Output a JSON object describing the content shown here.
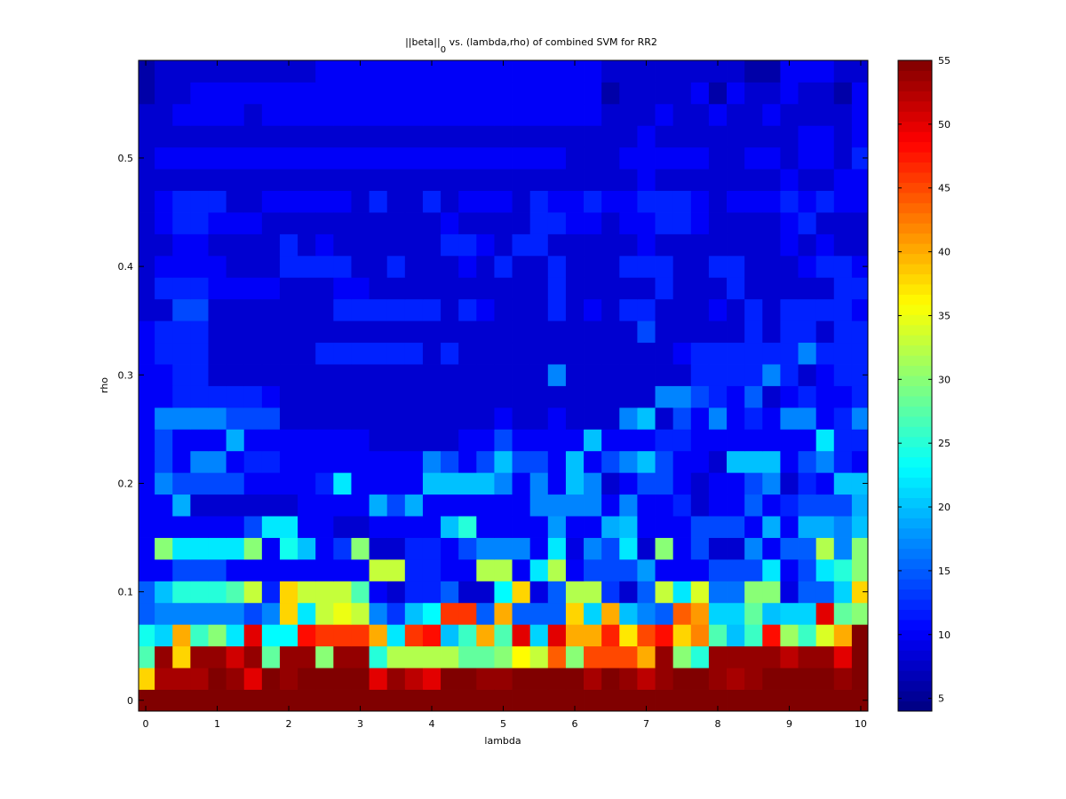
{
  "chart_data": {
    "type": "heatmap",
    "title_main": "||beta||",
    "title_sub": "0",
    "title_rest": " vs. (lambda,rho) of combined SVM for RR2",
    "xlabel": "lambda",
    "ylabel": "rho",
    "xlim": [
      -0.1,
      10.1
    ],
    "ylim": [
      -0.01,
      0.59
    ],
    "xticks": [
      "0",
      "1",
      "2",
      "3",
      "4",
      "5",
      "6",
      "7",
      "8",
      "9",
      "10"
    ],
    "yticks": [
      "0",
      "0.1",
      "0.2",
      "0.3",
      "0.4",
      "0.5"
    ],
    "x": [
      0,
      0.25,
      0.5,
      0.75,
      1,
      1.25,
      1.5,
      1.75,
      2,
      2.25,
      2.5,
      2.75,
      3,
      3.25,
      3.5,
      3.75,
      4,
      4.25,
      4.5,
      4.75,
      5,
      5.25,
      5.5,
      5.75,
      6,
      6.25,
      6.5,
      6.75,
      7,
      7.25,
      7.5,
      7.75,
      8,
      8.25,
      8.5,
      8.75,
      9,
      9.25,
      9.5,
      9.75,
      10
    ],
    "y": [
      0,
      0.02,
      0.04,
      0.06,
      0.08,
      0.1,
      0.12,
      0.14,
      0.16,
      0.18,
      0.2,
      0.22,
      0.24,
      0.26,
      0.28,
      0.3,
      0.32,
      0.34,
      0.36,
      0.38,
      0.4,
      0.42,
      0.44,
      0.46,
      0.48,
      0.5,
      0.52,
      0.54,
      0.56,
      0.58
    ],
    "z": [
      [
        55,
        55,
        55,
        55,
        55,
        55,
        55,
        55,
        55,
        55,
        55,
        55,
        55,
        55,
        55,
        55,
        55,
        55,
        55,
        55,
        55,
        55,
        55,
        55,
        55,
        55,
        55,
        55,
        55,
        55,
        55,
        55,
        55,
        55,
        55,
        55,
        55,
        55,
        55,
        55,
        55
      ],
      [
        38,
        53,
        53,
        53,
        55,
        54,
        50,
        55,
        54,
        55,
        55,
        55,
        55,
        50,
        54,
        52,
        50,
        55,
        55,
        54,
        54,
        55,
        55,
        55,
        55,
        53,
        55,
        54,
        52,
        54,
        55,
        55,
        54,
        53,
        54,
        55,
        55,
        55,
        55,
        54,
        55
      ],
      [
        27,
        54,
        38,
        54,
        54,
        51,
        54,
        28,
        54,
        54,
        30,
        54,
        54,
        25,
        32,
        32,
        32,
        32,
        28,
        28,
        30,
        36,
        33,
        44,
        30,
        45,
        45,
        45,
        40,
        54,
        30,
        25,
        54,
        54,
        54,
        54,
        52,
        54,
        54,
        50,
        55
      ],
      [
        24,
        21,
        40,
        26,
        30,
        22,
        50,
        23,
        23,
        48,
        46,
        46,
        46,
        40,
        22,
        46,
        48,
        20,
        26,
        40,
        27,
        50,
        21,
        50,
        40,
        40,
        47,
        37,
        45,
        48,
        38,
        42,
        27,
        20,
        26,
        48,
        31,
        26,
        34,
        40,
        55
      ],
      [
        15,
        17,
        17,
        17,
        17,
        17,
        14,
        17,
        38,
        22,
        33,
        35,
        33,
        17,
        13,
        20,
        23,
        46,
        46,
        15,
        40,
        15,
        15,
        15,
        38,
        21,
        40,
        20,
        17,
        15,
        44,
        41,
        21,
        21,
        28,
        20,
        21,
        21,
        50,
        28,
        30
      ],
      [
        15,
        20,
        25,
        25,
        25,
        27,
        33,
        12,
        38,
        33,
        33,
        33,
        27,
        10,
        8,
        12,
        12,
        15,
        8,
        8,
        23,
        38,
        9,
        15,
        32,
        32,
        13,
        8,
        15,
        33,
        22,
        34,
        16,
        16,
        30,
        30,
        9,
        15,
        15,
        21,
        38
      ],
      [
        10,
        10,
        14,
        14,
        14,
        10,
        10,
        10,
        10,
        10,
        10,
        10,
        10,
        33,
        33,
        12,
        12,
        10,
        10,
        32,
        32,
        10,
        22,
        32,
        10,
        14,
        14,
        14,
        18,
        10,
        10,
        10,
        14,
        14,
        14,
        22,
        10,
        14,
        22,
        25,
        30
      ],
      [
        10,
        30,
        22,
        22,
        22,
        22,
        30,
        10,
        24,
        20,
        10,
        13,
        30,
        8,
        8,
        12,
        12,
        10,
        14,
        17,
        17,
        17,
        10,
        22,
        9,
        17,
        14,
        22,
        8,
        30,
        10,
        14,
        8,
        8,
        17,
        10,
        15,
        15,
        32,
        17,
        30
      ],
      [
        10,
        10,
        10,
        10,
        10,
        10,
        14,
        22,
        22,
        10,
        10,
        8,
        8,
        10,
        10,
        10,
        10,
        20,
        25,
        10,
        10,
        10,
        10,
        18,
        10,
        10,
        19,
        20,
        10,
        10,
        10,
        14,
        14,
        14,
        10,
        19,
        10,
        19,
        19,
        17,
        20
      ],
      [
        10,
        10,
        19,
        8,
        8,
        8,
        8,
        8,
        8,
        10,
        10,
        10,
        10,
        19,
        14,
        19,
        10,
        10,
        10,
        10,
        10,
        10,
        17,
        17,
        17,
        17,
        10,
        17,
        10,
        10,
        12,
        8,
        10,
        10,
        15,
        10,
        12,
        14,
        14,
        14,
        19
      ],
      [
        10,
        17,
        14,
        14,
        14,
        14,
        10,
        10,
        10,
        10,
        12,
        22,
        10,
        10,
        10,
        10,
        20,
        20,
        20,
        20,
        17,
        10,
        17,
        10,
        20,
        17,
        8,
        10,
        14,
        14,
        10,
        8,
        10,
        10,
        14,
        17,
        8,
        12,
        10,
        20,
        20
      ],
      [
        10,
        14,
        10,
        17,
        17,
        10,
        12,
        12,
        10,
        10,
        10,
        10,
        10,
        10,
        10,
        10,
        17,
        14,
        10,
        14,
        20,
        14,
        14,
        10,
        20,
        10,
        14,
        17,
        20,
        14,
        10,
        10,
        8,
        20,
        20,
        20,
        10,
        14,
        17,
        12,
        10
      ],
      [
        10,
        14,
        10,
        10,
        10,
        19,
        10,
        10,
        10,
        10,
        10,
        10,
        10,
        8,
        8,
        8,
        8,
        8,
        10,
        10,
        14,
        10,
        10,
        10,
        10,
        20,
        10,
        10,
        10,
        12,
        12,
        10,
        10,
        10,
        10,
        10,
        10,
        10,
        22,
        12,
        12
      ],
      [
        10,
        17,
        17,
        17,
        17,
        14,
        14,
        14,
        8,
        8,
        8,
        8,
        8,
        8,
        8,
        8,
        8,
        8,
        8,
        8,
        10,
        8,
        8,
        10,
        8,
        8,
        8,
        17,
        20,
        8,
        14,
        10,
        17,
        10,
        12,
        10,
        17,
        17,
        10,
        12,
        17
      ],
      [
        10,
        10,
        12,
        12,
        12,
        12,
        12,
        10,
        8,
        8,
        8,
        8,
        8,
        8,
        8,
        8,
        8,
        8,
        8,
        8,
        8,
        8,
        8,
        8,
        8,
        8,
        8,
        8,
        8,
        17,
        17,
        14,
        12,
        10,
        15,
        8,
        10,
        12,
        10,
        10,
        12
      ],
      [
        10,
        10,
        12,
        12,
        8,
        8,
        8,
        8,
        8,
        8,
        8,
        8,
        8,
        8,
        8,
        8,
        8,
        8,
        8,
        8,
        8,
        8,
        8,
        17,
        8,
        8,
        8,
        8,
        8,
        8,
        8,
        12,
        12,
        12,
        12,
        17,
        12,
        8,
        10,
        12,
        12
      ],
      [
        10,
        12,
        12,
        12,
        8,
        8,
        8,
        8,
        8,
        8,
        12,
        12,
        12,
        12,
        12,
        12,
        8,
        12,
        8,
        8,
        8,
        8,
        8,
        8,
        8,
        8,
        8,
        8,
        8,
        8,
        10,
        12,
        12,
        12,
        12,
        12,
        12,
        17,
        12,
        12,
        12
      ],
      [
        10,
        12,
        12,
        12,
        8,
        8,
        8,
        8,
        8,
        8,
        8,
        8,
        8,
        8,
        8,
        8,
        8,
        8,
        8,
        8,
        8,
        8,
        8,
        8,
        8,
        8,
        8,
        8,
        14,
        8,
        8,
        8,
        8,
        8,
        12,
        8,
        12,
        12,
        8,
        12,
        12
      ],
      [
        8,
        8,
        14,
        14,
        8,
        8,
        8,
        8,
        8,
        8,
        8,
        12,
        12,
        12,
        12,
        12,
        12,
        8,
        12,
        10,
        8,
        8,
        8,
        12,
        8,
        10,
        8,
        12,
        12,
        8,
        8,
        8,
        10,
        8,
        12,
        8,
        12,
        12,
        12,
        12,
        10
      ],
      [
        8,
        12,
        12,
        12,
        10,
        10,
        10,
        10,
        8,
        8,
        8,
        10,
        10,
        8,
        8,
        8,
        8,
        8,
        8,
        8,
        8,
        8,
        8,
        12,
        8,
        8,
        8,
        8,
        8,
        12,
        8,
        8,
        8,
        12,
        8,
        8,
        8,
        8,
        8,
        12,
        12
      ],
      [
        8,
        10,
        10,
        10,
        10,
        8,
        8,
        8,
        12,
        12,
        12,
        12,
        8,
        8,
        12,
        8,
        8,
        8,
        10,
        8,
        12,
        8,
        8,
        12,
        8,
        8,
        8,
        12,
        12,
        12,
        8,
        8,
        12,
        12,
        8,
        8,
        8,
        10,
        12,
        12,
        10
      ],
      [
        8,
        8,
        10,
        10,
        8,
        8,
        8,
        8,
        12,
        8,
        10,
        8,
        8,
        8,
        8,
        8,
        8,
        12,
        12,
        10,
        8,
        12,
        12,
        8,
        8,
        8,
        8,
        8,
        10,
        8,
        8,
        8,
        8,
        8,
        8,
        8,
        10,
        8,
        10,
        8,
        8
      ],
      [
        8,
        10,
        12,
        12,
        10,
        10,
        10,
        8,
        8,
        8,
        8,
        8,
        8,
        8,
        8,
        8,
        8,
        10,
        8,
        8,
        8,
        8,
        12,
        12,
        10,
        10,
        8,
        10,
        10,
        12,
        12,
        10,
        8,
        8,
        8,
        8,
        10,
        12,
        8,
        8,
        8
      ],
      [
        8,
        10,
        12,
        12,
        12,
        8,
        8,
        10,
        10,
        10,
        10,
        10,
        8,
        12,
        8,
        8,
        12,
        8,
        10,
        10,
        10,
        8,
        12,
        10,
        10,
        12,
        10,
        10,
        12,
        12,
        12,
        10,
        8,
        10,
        10,
        10,
        12,
        10,
        12,
        10,
        10
      ],
      [
        8,
        8,
        8,
        8,
        8,
        8,
        8,
        8,
        8,
        8,
        8,
        8,
        8,
        8,
        8,
        8,
        8,
        8,
        8,
        8,
        8,
        8,
        8,
        8,
        8,
        8,
        8,
        8,
        10,
        8,
        8,
        8,
        8,
        8,
        8,
        8,
        10,
        8,
        8,
        10,
        10
      ],
      [
        8,
        10,
        10,
        10,
        10,
        10,
        10,
        10,
        10,
        10,
        10,
        10,
        10,
        10,
        10,
        10,
        10,
        10,
        10,
        10,
        10,
        10,
        10,
        10,
        8,
        8,
        8,
        10,
        10,
        10,
        10,
        10,
        8,
        8,
        10,
        10,
        8,
        10,
        10,
        8,
        12
      ],
      [
        8,
        8,
        8,
        8,
        8,
        8,
        8,
        8,
        8,
        8,
        8,
        8,
        8,
        8,
        8,
        8,
        8,
        8,
        8,
        8,
        8,
        8,
        8,
        8,
        8,
        8,
        8,
        8,
        10,
        8,
        8,
        8,
        8,
        8,
        8,
        8,
        8,
        10,
        10,
        8,
        10
      ],
      [
        8,
        8,
        10,
        10,
        10,
        10,
        8,
        10,
        10,
        10,
        10,
        10,
        10,
        10,
        10,
        10,
        10,
        10,
        10,
        10,
        10,
        10,
        10,
        10,
        10,
        10,
        8,
        8,
        8,
        10,
        8,
        8,
        10,
        8,
        8,
        10,
        8,
        8,
        8,
        8,
        10
      ],
      [
        6,
        8,
        8,
        10,
        10,
        10,
        10,
        10,
        10,
        10,
        10,
        10,
        10,
        10,
        10,
        10,
        10,
        10,
        10,
        10,
        10,
        10,
        10,
        10,
        10,
        10,
        6,
        8,
        8,
        8,
        8,
        10,
        6,
        10,
        8,
        8,
        10,
        8,
        8,
        6,
        10
      ],
      [
        6,
        8,
        8,
        8,
        8,
        8,
        8,
        8,
        8,
        8,
        10,
        10,
        10,
        10,
        10,
        10,
        10,
        10,
        10,
        10,
        10,
        10,
        10,
        10,
        10,
        10,
        8,
        8,
        8,
        8,
        8,
        8,
        8,
        8,
        6,
        6,
        10,
        10,
        10,
        8,
        8
      ]
    ],
    "colorbar": {
      "colormap": "jet",
      "range": [
        4,
        55
      ],
      "ticks": [
        "5",
        "10",
        "15",
        "20",
        "25",
        "30",
        "35",
        "40",
        "45",
        "50",
        "55"
      ]
    }
  }
}
